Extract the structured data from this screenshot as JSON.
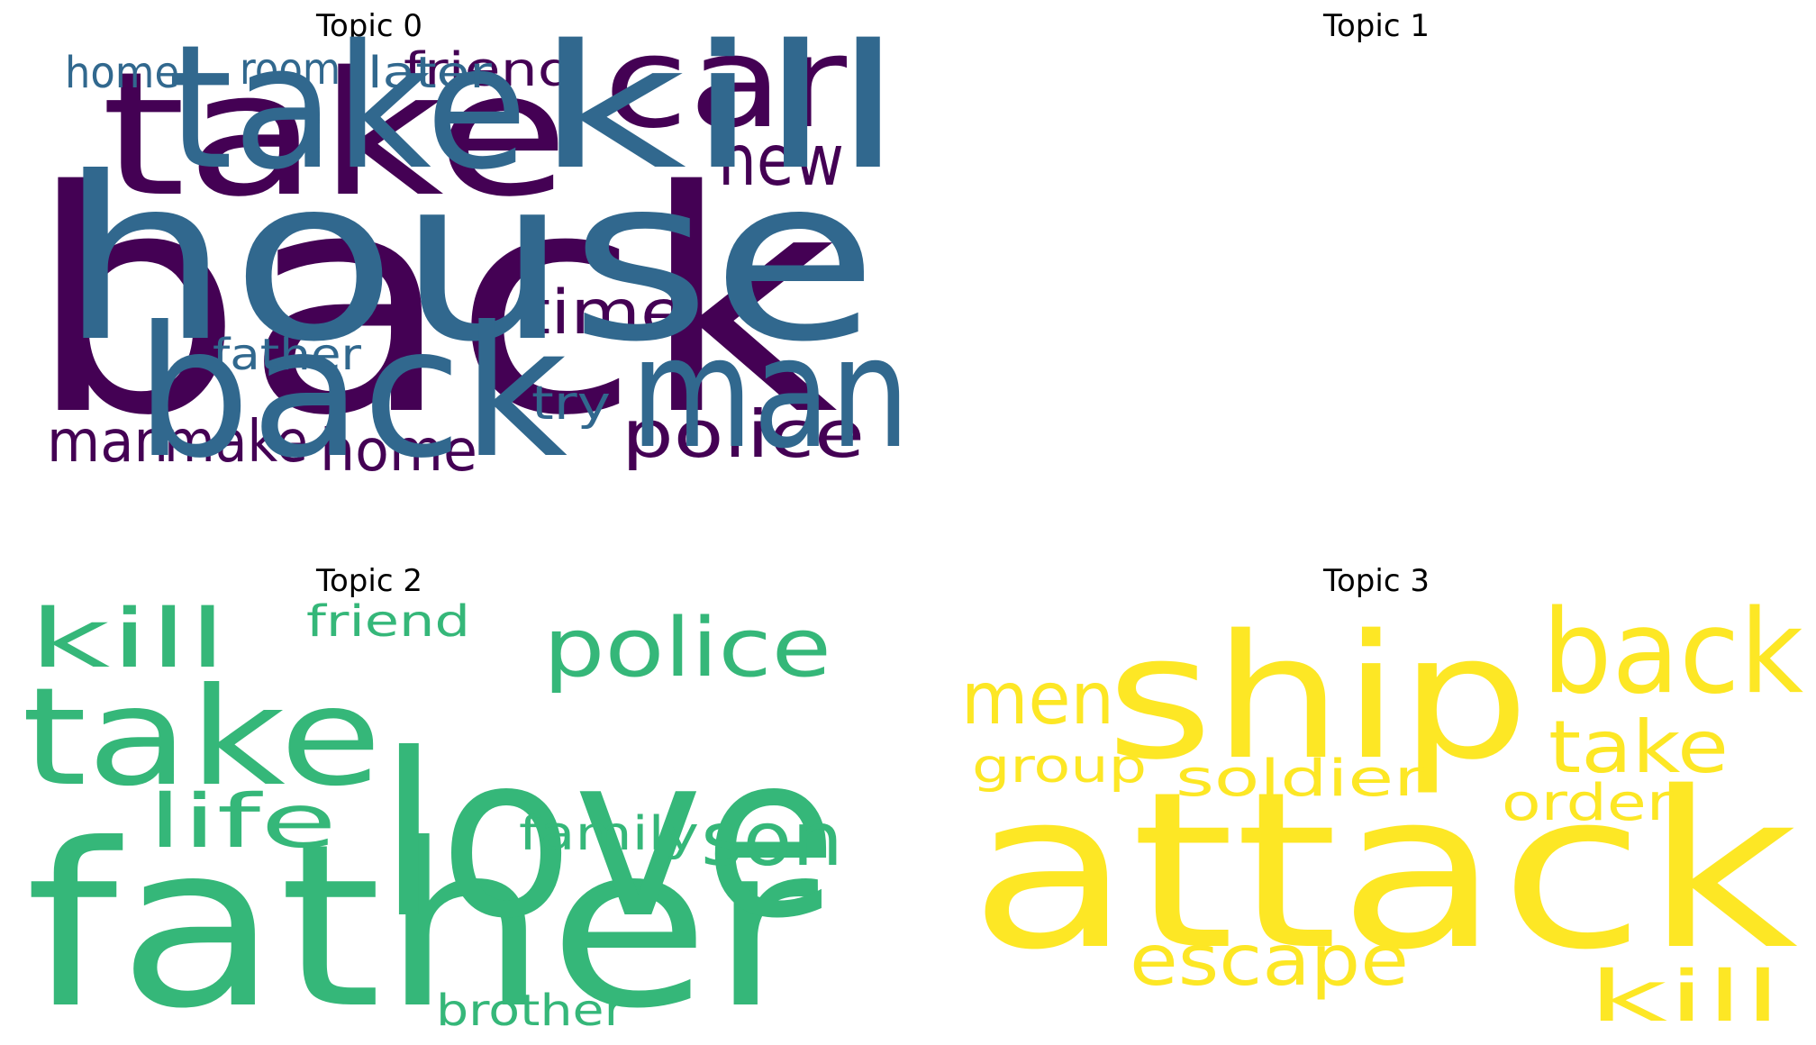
{
  "chart_data": [
    {
      "type": "wordcloud",
      "title": "Topic 0",
      "color": "#440154",
      "words": [
        "back",
        "take",
        "car",
        "friend",
        "new",
        "time",
        "police",
        "man",
        "make",
        "home"
      ]
    },
    {
      "type": "wordcloud",
      "title": "Topic 1",
      "color": "#31688e",
      "words": [
        "house",
        "take",
        "kill",
        "back",
        "man",
        "home",
        "room",
        "later",
        "father",
        "try"
      ]
    },
    {
      "type": "wordcloud",
      "title": "Topic 2",
      "color": "#35b779",
      "words": [
        "father",
        "love",
        "take",
        "kill",
        "police",
        "friend",
        "life",
        "son",
        "family",
        "brother"
      ]
    },
    {
      "type": "wordcloud",
      "title": "Topic 3",
      "color": "#fde725",
      "words": [
        "attack",
        "ship",
        "back",
        "men",
        "take",
        "group",
        "soldier",
        "order",
        "escape",
        "kill"
      ]
    }
  ]
}
